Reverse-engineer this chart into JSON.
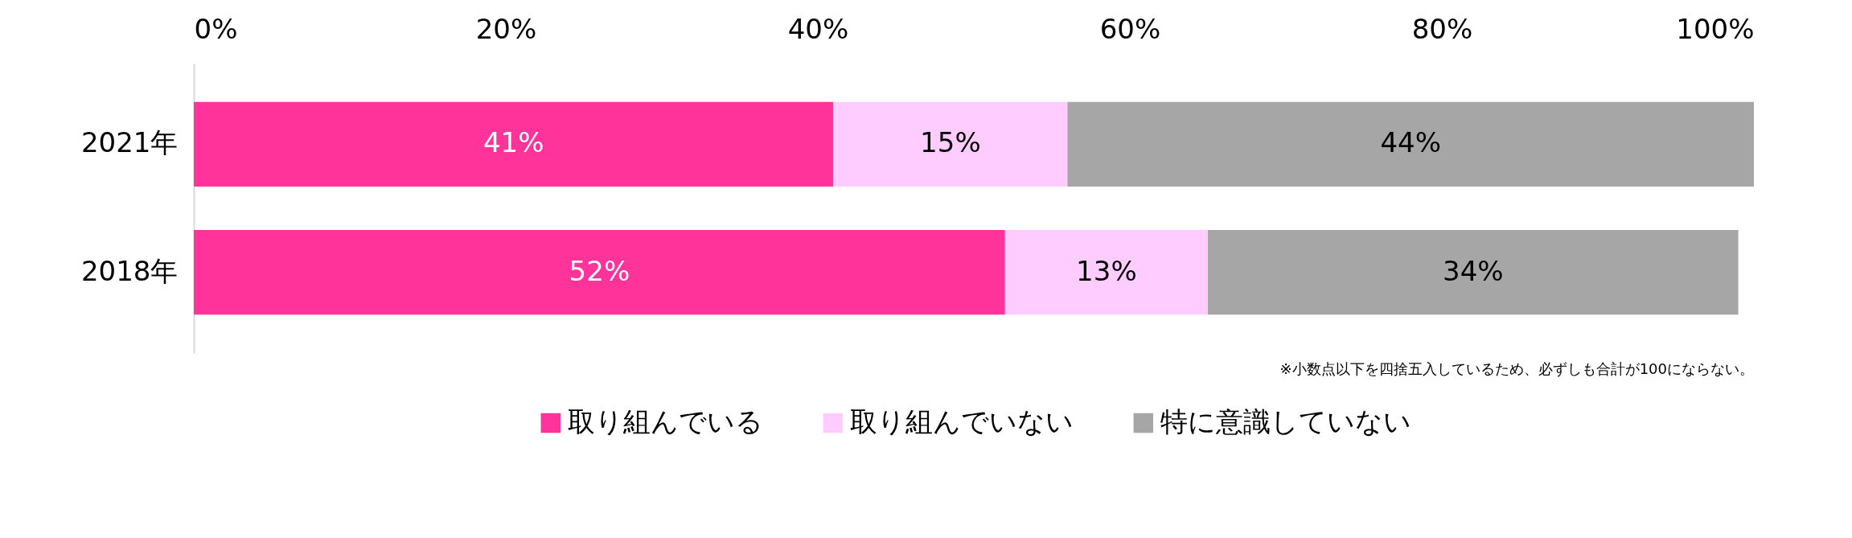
{
  "chart_data": {
    "type": "bar",
    "orientation": "horizontal",
    "stacked": true,
    "categories": [
      "2021年",
      "2018年"
    ],
    "series": [
      {
        "name": "取り組んでいる",
        "color": "#ff3399",
        "values": [
          41,
          52
        ],
        "value_labels": [
          "41%",
          "52%"
        ]
      },
      {
        "name": "取り組んでいない",
        "color": "#ffccff",
        "values": [
          15,
          13
        ],
        "value_labels": [
          "15%",
          "13%"
        ]
      },
      {
        "name": "特に意識していない",
        "color": "#a6a6a6",
        "values": [
          44,
          34
        ],
        "value_labels": [
          "44%",
          "34%"
        ]
      }
    ],
    "xlim": [
      0,
      100
    ],
    "xticks": [
      {
        "value": 0,
        "label": "0%"
      },
      {
        "value": 20,
        "label": "20%"
      },
      {
        "value": 40,
        "label": "40%"
      },
      {
        "value": 60,
        "label": "60%"
      },
      {
        "value": 80,
        "label": "80%"
      },
      {
        "value": 100,
        "label": "100%"
      }
    ],
    "grid": false,
    "legend": "bottom",
    "annotations": [
      "※小数点以下を四捨五入しているため、必ずしも合計が100にならない。"
    ]
  }
}
